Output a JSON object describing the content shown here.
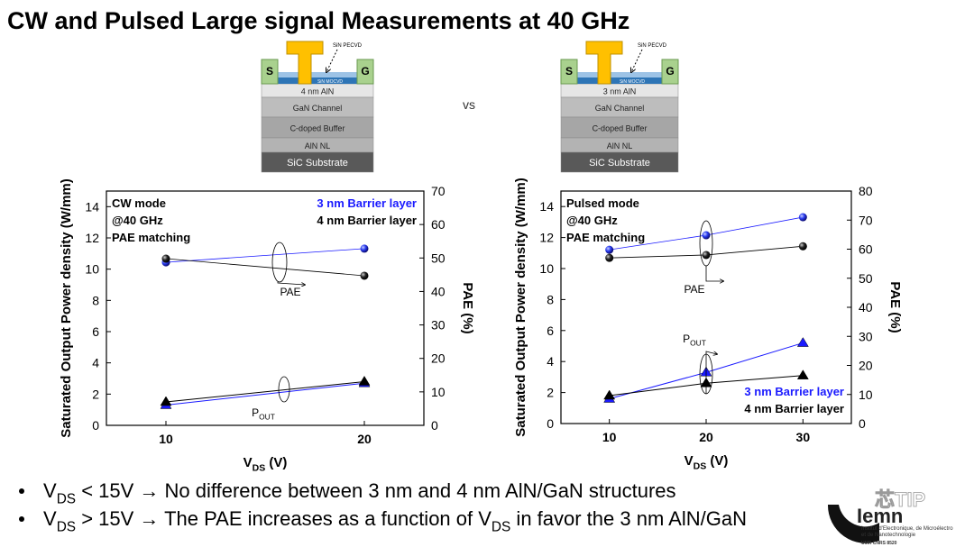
{
  "title": "CW and Pulsed Large signal Measurements at 40 GHz",
  "vs": "vs",
  "stacks": [
    {
      "source": "S",
      "gate_pad": "G",
      "pecvd": "SiN PECVD",
      "mocvd": "SiN MOCVD",
      "layers": [
        "4 nm AlN",
        "GaN Channel",
        "C-doped Buffer",
        "AlN NL",
        "SiC Substrate"
      ]
    },
    {
      "source": "S",
      "gate_pad": "G",
      "pecvd": "SiN PECVD",
      "mocvd": "SiN MOCVD",
      "layers": [
        "3 nm AlN",
        "GaN Channel",
        "C-doped Buffer",
        "AlN NL",
        "SiC Substrate"
      ]
    }
  ],
  "chart_data": [
    {
      "type": "line",
      "ylabel": "Saturated Output Power density (W/mm)",
      "y2label": "PAE (%)",
      "xlabel": [
        "V",
        "DS",
        " (V)"
      ],
      "note": [
        "CW mode",
        "@40 GHz",
        "PAE matching"
      ],
      "legend": "top-right",
      "x": [
        10,
        20
      ],
      "xlim": [
        7,
        23
      ],
      "xticks": [
        10,
        20
      ],
      "ylim": [
        0,
        15
      ],
      "yticks": [
        0,
        2,
        4,
        6,
        8,
        10,
        12,
        14
      ],
      "y2lim": [
        0,
        70
      ],
      "y2ticks": [
        0,
        10,
        20,
        30,
        40,
        50,
        60,
        70
      ],
      "series": [
        {
          "name": "3 nm Barrier layer",
          "color": "#1a1aff",
          "values": [
            1.3,
            2.7
          ],
          "pae_values": [
            48.7,
            52.8
          ]
        },
        {
          "name": "4 nm Barrier layer",
          "color": "#000000",
          "values": [
            1.5,
            2.8
          ],
          "pae_values": [
            49.8,
            44.7
          ]
        }
      ],
      "annotations": [
        [
          "PAE"
        ],
        [
          "P",
          "OUT"
        ]
      ]
    },
    {
      "type": "line",
      "ylabel": "Saturated Output Power density (W/mm)",
      "y2label": "PAE (%)",
      "xlabel": [
        "V",
        "DS",
        " (V)"
      ],
      "note": [
        "Pulsed mode",
        "@40 GHz",
        "PAE matching"
      ],
      "legend": "bottom-right",
      "x": [
        10,
        20,
        30
      ],
      "xlim": [
        5,
        35
      ],
      "xticks": [
        10,
        20,
        30
      ],
      "ylim": [
        0,
        15
      ],
      "yticks": [
        0,
        2,
        4,
        6,
        8,
        10,
        12,
        14
      ],
      "y2lim": [
        0,
        80
      ],
      "y2ticks": [
        0,
        10,
        20,
        30,
        40,
        50,
        60,
        70,
        80
      ],
      "series": [
        {
          "name": "3 nm Barrier layer",
          "color": "#1a1aff",
          "values": [
            1.6,
            3.3,
            5.2
          ],
          "pae_values": [
            59.8,
            64.8,
            71.0
          ]
        },
        {
          "name": "4 nm Barrier layer",
          "color": "#000000",
          "values": [
            1.8,
            2.6,
            3.1
          ],
          "pae_values": [
            57,
            58,
            61
          ]
        }
      ],
      "annotations": [
        [
          "PAE"
        ],
        [
          "P",
          "OUT"
        ]
      ]
    }
  ],
  "bullets": [
    [
      "V",
      "DS",
      " < 15V → No difference between 3 nm and 4 nm AlN/GaN structures"
    ],
    [
      "V",
      "DS",
      " > 15V → The PAE increases as a function of V",
      "DS",
      " in favor the 3 nm AlN/GaN"
    ]
  ],
  "watermark": "芯TIP",
  "logo": {
    "name": "Iemn",
    "line1": "Institut d'Electronique, de Microélectro",
    "line2": "et de Nanotechnologie",
    "line3": "UMR CNRS 8520"
  }
}
